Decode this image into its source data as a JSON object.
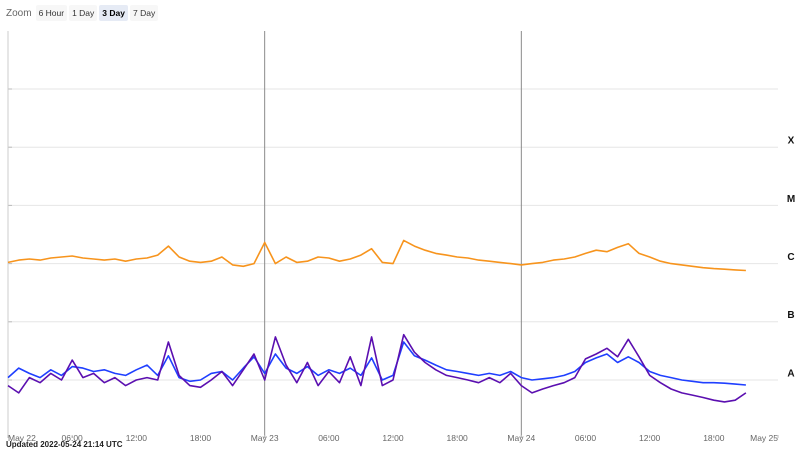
{
  "zoom": {
    "label": "Zoom",
    "buttons": [
      {
        "label": "6 Hour",
        "active": false
      },
      {
        "label": "1 Day",
        "active": false
      },
      {
        "label": "3 Day",
        "active": true
      },
      {
        "label": "7 Day",
        "active": false
      }
    ]
  },
  "updated_text": "Updated 2022-05-24 21:14 UTC",
  "chart_data": {
    "type": "line",
    "x_unit": "hours since May 22 00:00 UTC",
    "xlim": [
      0,
      72
    ],
    "x_ticks": [
      {
        "value": 0,
        "label": "May 22"
      },
      {
        "value": 6,
        "label": "06:00"
      },
      {
        "value": 12,
        "label": "12:00"
      },
      {
        "value": 18,
        "label": "18:00"
      },
      {
        "value": 24,
        "label": "May 23"
      },
      {
        "value": 30,
        "label": "06:00"
      },
      {
        "value": 36,
        "label": "12:00"
      },
      {
        "value": 42,
        "label": "18:00"
      },
      {
        "value": 48,
        "label": "May 24"
      },
      {
        "value": 54,
        "label": "06:00"
      },
      {
        "value": 60,
        "label": "12:00"
      },
      {
        "value": 66,
        "label": "18:00"
      },
      {
        "value": 72,
        "label": "May 25"
      }
    ],
    "day_lines": [
      24,
      48
    ],
    "y_scale": "log",
    "ylim": [
      1e-09,
      0.001
    ],
    "flare_classes": [
      {
        "label": "A",
        "value": 1e-08
      },
      {
        "label": "B",
        "value": 1e-07
      },
      {
        "label": "C",
        "value": 1e-06
      },
      {
        "label": "M",
        "value": 1e-05
      },
      {
        "label": "X",
        "value": 0.0001
      }
    ],
    "grid": true,
    "series": [
      {
        "color": "#f7941d",
        "x": [
          0,
          1,
          2,
          3,
          4,
          5,
          6,
          7,
          8,
          9,
          10,
          11,
          12,
          13,
          14,
          15,
          16,
          17,
          18,
          19,
          20,
          21,
          22,
          23,
          24,
          25,
          26,
          27,
          28,
          29,
          30,
          31,
          32,
          33,
          34,
          35,
          36,
          37,
          38,
          39,
          40,
          41,
          42,
          43,
          44,
          45,
          46,
          47,
          48,
          49,
          50,
          51,
          52,
          53,
          54,
          55,
          56,
          57,
          58,
          59,
          60,
          61,
          62,
          63,
          64,
          65,
          66,
          67,
          68,
          69
        ],
        "y": [
          1.05e-06,
          1.15e-06,
          1.2e-06,
          1.15e-06,
          1.25e-06,
          1.3e-06,
          1.35e-06,
          1.25e-06,
          1.2e-06,
          1.15e-06,
          1.2e-06,
          1.1e-06,
          1.2e-06,
          1.25e-06,
          1.4e-06,
          2e-06,
          1.3e-06,
          1.1e-06,
          1.05e-06,
          1.1e-06,
          1.3e-06,
          9.5e-07,
          9e-07,
          1e-06,
          2.3e-06,
          1e-06,
          1.3e-06,
          1.05e-06,
          1.1e-06,
          1.3e-06,
          1.25e-06,
          1.1e-06,
          1.2e-06,
          1.4e-06,
          1.8e-06,
          1.05e-06,
          1e-06,
          2.5e-06,
          2e-06,
          1.7e-06,
          1.5e-06,
          1.4e-06,
          1.3e-06,
          1.25e-06,
          1.15e-06,
          1.1e-06,
          1.05e-06,
          1e-06,
          9.5e-07,
          1e-06,
          1.05e-06,
          1.15e-06,
          1.2e-06,
          1.3e-06,
          1.5e-06,
          1.7e-06,
          1.6e-06,
          1.9e-06,
          2.2e-06,
          1.5e-06,
          1.3e-06,
          1.1e-06,
          1e-06,
          9.5e-07,
          9e-07,
          8.5e-07,
          8.2e-07,
          8e-07,
          7.8e-07,
          7.6e-07
        ]
      },
      {
        "color": "#1f3fff",
        "x": [
          0,
          1,
          2,
          3,
          4,
          5,
          6,
          7,
          8,
          9,
          10,
          11,
          12,
          13,
          14,
          15,
          16,
          17,
          18,
          19,
          20,
          21,
          22,
          23,
          24,
          25,
          26,
          27,
          28,
          29,
          30,
          31,
          32,
          33,
          34,
          35,
          36,
          37,
          38,
          39,
          40,
          41,
          42,
          43,
          44,
          45,
          46,
          47,
          48,
          49,
          50,
          51,
          52,
          53,
          54,
          55,
          56,
          57,
          58,
          59,
          60,
          61,
          62,
          63,
          64,
          65,
          66,
          67,
          68,
          69
        ],
        "y": [
          1.1e-08,
          1.6e-08,
          1.3e-08,
          1.1e-08,
          1.5e-08,
          1.2e-08,
          1.7e-08,
          1.6e-08,
          1.4e-08,
          1.5e-08,
          1.3e-08,
          1.2e-08,
          1.5e-08,
          1.8e-08,
          1.2e-08,
          2.6e-08,
          1.1e-08,
          9.5e-09,
          1e-08,
          1.3e-08,
          1.4e-08,
          1e-08,
          1.6e-08,
          2.5e-08,
          1.3e-08,
          2.8e-08,
          1.6e-08,
          1.3e-08,
          1.7e-08,
          1.2e-08,
          1.5e-08,
          1.3e-08,
          1.6e-08,
          1.2e-08,
          2.4e-08,
          1e-08,
          1.2e-08,
          4.5e-08,
          2.6e-08,
          2.2e-08,
          1.8e-08,
          1.5e-08,
          1.4e-08,
          1.3e-08,
          1.2e-08,
          1.3e-08,
          1.2e-08,
          1.4e-08,
          1.1e-08,
          1e-08,
          1.05e-08,
          1.1e-08,
          1.2e-08,
          1.4e-08,
          2e-08,
          2.4e-08,
          2.8e-08,
          2e-08,
          2.5e-08,
          2e-08,
          1.4e-08,
          1.2e-08,
          1.1e-08,
          1e-08,
          9.5e-09,
          9e-09,
          9e-09,
          8.8e-09,
          8.5e-09,
          8.2e-09
        ]
      },
      {
        "color": "#5b0fb0",
        "x": [
          0,
          1,
          2,
          3,
          4,
          5,
          6,
          7,
          8,
          9,
          10,
          11,
          12,
          13,
          14,
          15,
          16,
          17,
          18,
          19,
          20,
          21,
          22,
          23,
          24,
          25,
          26,
          27,
          28,
          29,
          30,
          31,
          32,
          33,
          34,
          35,
          36,
          37,
          38,
          39,
          40,
          41,
          42,
          43,
          44,
          45,
          46,
          47,
          48,
          49,
          50,
          51,
          52,
          53,
          54,
          55,
          56,
          57,
          58,
          59,
          60,
          61,
          62,
          63,
          64,
          65,
          66,
          67,
          68,
          69
        ],
        "y": [
          8e-09,
          6e-09,
          1.1e-08,
          9e-09,
          1.3e-08,
          1e-08,
          2.2e-08,
          1.1e-08,
          1.3e-08,
          9e-09,
          1.1e-08,
          8e-09,
          1e-08,
          1.1e-08,
          1e-08,
          4.5e-08,
          1.2e-08,
          8e-09,
          7.5e-09,
          1e-08,
          1.4e-08,
          8e-09,
          1.5e-08,
          2.8e-08,
          1e-08,
          5.5e-08,
          1.8e-08,
          9e-09,
          2e-08,
          8e-09,
          1.4e-08,
          9e-09,
          2.5e-08,
          8e-09,
          5.5e-08,
          8e-09,
          1e-08,
          6e-08,
          3e-08,
          2e-08,
          1.5e-08,
          1.2e-08,
          1.1e-08,
          1e-08,
          9e-09,
          1.1e-08,
          9e-09,
          1.3e-08,
          8e-09,
          6e-09,
          7e-09,
          8e-09,
          9e-09,
          1.1e-08,
          2.3e-08,
          2.8e-08,
          3.5e-08,
          2.5e-08,
          5e-08,
          2.5e-08,
          1.2e-08,
          9e-09,
          7e-09,
          6e-09,
          5.5e-09,
          5e-09,
          4.5e-09,
          4.2e-09,
          4.5e-09,
          6e-09
        ]
      }
    ]
  }
}
